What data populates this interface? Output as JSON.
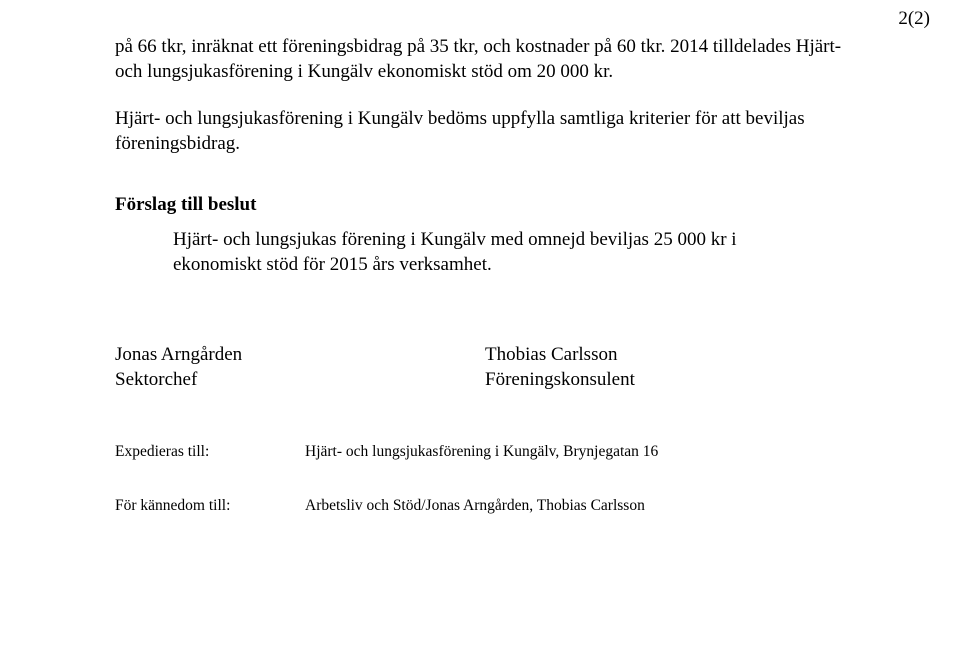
{
  "page_number": "2(2)",
  "paragraph1": "på 66 tkr, inräknat ett föreningsbidrag på 35 tkr, och kostnader på 60 tkr. 2014 tilldelades Hjärt-och lungsjukasförening i Kungälv ekonomiskt stöd om 20 000 kr.",
  "paragraph2": "Hjärt- och lungsjukasförening i Kungälv bedöms uppfylla samtliga kriterier för att beviljas föreningsbidrag.",
  "heading": "Förslag till beslut",
  "decision": "Hjärt- och lungsjukas förening i Kungälv med omnejd beviljas 25 000 kr i ekonomiskt stöd för 2015 års verksamhet.",
  "signatures": {
    "left_name": "Jonas Arngården",
    "left_title": "Sektorchef",
    "right_name": "Thobias Carlsson",
    "right_title": "Föreningskonsulent"
  },
  "meta": {
    "exp_label": "Expedieras till:",
    "exp_value": "Hjärt- och lungsjukasförening i Kungälv, Brynjegatan 16",
    "info_label": "För kännedom till:",
    "info_value": "Arbetsliv och Stöd/Jonas Arngården, Thobias Carlsson"
  }
}
